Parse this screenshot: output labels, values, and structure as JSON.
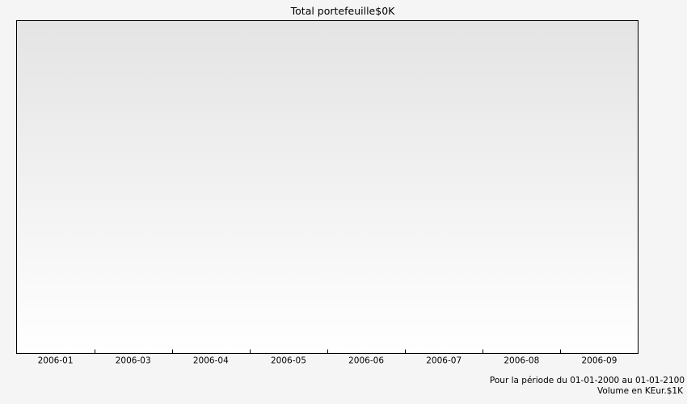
{
  "chart_data": {
    "type": "bar",
    "title": "Total portefeuille$0K",
    "categories": [
      "2006-01",
      "2006-03",
      "2006-04",
      "2006-05",
      "2006-06",
      "2006-07",
      "2006-08",
      "2006-09"
    ],
    "series": [
      {
        "name": "Total portefeuille",
        "values": [
          0,
          0,
          0,
          0,
          0,
          0,
          0,
          0
        ]
      }
    ],
    "xlabel": "",
    "ylabel": "",
    "grid": false,
    "legend": "none",
    "footnotes": [
      "Pour la période du 01-01-2000 au 01-01-2100",
      "Volume en KEur.$1K"
    ]
  },
  "colors": {
    "page_background": "#f5f5f5",
    "plot_gradient_top": "#e4e4e4",
    "plot_gradient_bottom": "#ffffff",
    "axis": "#000000"
  }
}
